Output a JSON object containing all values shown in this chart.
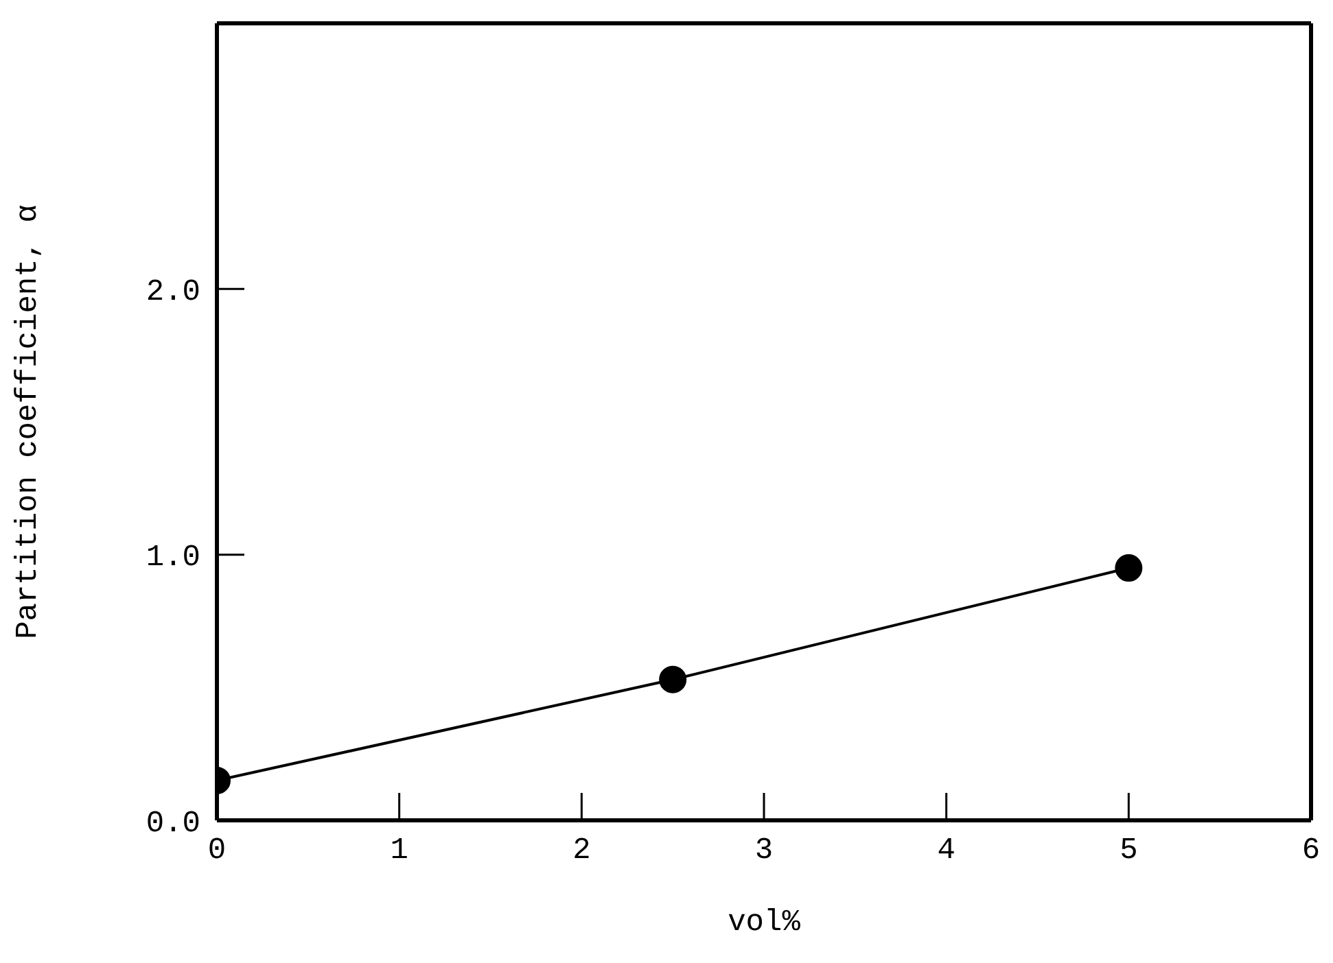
{
  "chart_data": {
    "type": "line",
    "xlabel": "vol%",
    "ylabel": "Partition coefficient, α",
    "x": [
      0,
      2.5,
      5
    ],
    "series": [
      {
        "color": "#000000",
        "values": [
          0.15,
          0.53,
          0.95
        ]
      }
    ],
    "xlim": [
      0,
      6
    ],
    "xticks": [
      0,
      1,
      2,
      3,
      4,
      5,
      6
    ],
    "ylim": [
      0,
      3
    ],
    "yticks": [
      {
        "value": 0,
        "label": "0.0"
      },
      {
        "value": 1,
        "label": "1.0"
      },
      {
        "value": 2,
        "label": "2.0"
      },
      {
        "value": 3,
        "label": null
      }
    ],
    "marker": "circle",
    "line_style": "solid",
    "grid": false,
    "legend": false
  }
}
